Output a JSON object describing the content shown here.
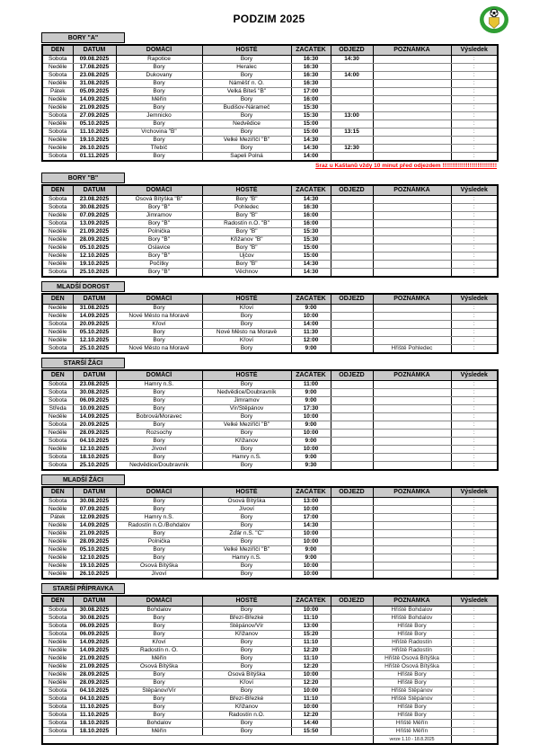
{
  "title": "PODZIM 2025",
  "logo": {
    "name": "club-emblem",
    "ring_color": "#2f9e33",
    "inner_color": "#ffffff",
    "shield_color": "#e9c331",
    "ball_color": "#111111"
  },
  "columns": [
    "DEN",
    "DATUM",
    "DOMÁCÍ",
    "HOSTÉ",
    "ZAČÁTEK",
    "ODJEZD",
    "POZNÁMKA",
    "Výsledek"
  ],
  "fields": [
    "den",
    "datum",
    "domaci",
    "hoste",
    "zacatek",
    "odjezd",
    "poznamka"
  ],
  "result_placeholder": ":",
  "red_note": "Sraz u Kaštanů vždy 10 minut před odjezdem !!!!!!!!!!!!!!!!!!!!!!!!!!!!",
  "red_note_color": "#ff0000",
  "version_note": "verze 1.10 -  18.8.2025",
  "sections": [
    {
      "id": "bory-a",
      "name": "BORY \"A\"",
      "show_red_note_after": true,
      "rows": [
        [
          "Sobota",
          "09.08.2025",
          "Rapotice",
          "Bory",
          "16:30",
          "14:30",
          ""
        ],
        [
          "Neděle",
          "17.08.2025",
          "Bory",
          "Heralec",
          "16:30",
          "",
          ""
        ],
        [
          "Sobota",
          "23.08.2025",
          "Dukovany",
          "Bory",
          "16:30",
          "14:00",
          ""
        ],
        [
          "Neděle",
          "31.08.2025",
          "Bory",
          "Náměšť n. O.",
          "16:30",
          "",
          ""
        ],
        [
          "Pátek",
          "05.09.2025",
          "Bory",
          "Velká Bíteš \"B\"",
          "17:00",
          "",
          ""
        ],
        [
          "Neděle",
          "14.09.2025",
          "Měřín",
          "Bory",
          "16:00",
          "",
          ""
        ],
        [
          "Neděle",
          "21.09.2025",
          "Bory",
          "Budišov-Nárameč",
          "15:30",
          "",
          ""
        ],
        [
          "Sobota",
          "27.09.2025",
          "Jemnicko",
          "Bory",
          "15:30",
          "13:00",
          ""
        ],
        [
          "Neděle",
          "05.10.2025",
          "Bory",
          "Nedvědice",
          "15:00",
          "",
          ""
        ],
        [
          "Sobota",
          "11.10.2025",
          "Vrchovina \"B\"",
          "Bory",
          "15:00",
          "13:15",
          ""
        ],
        [
          "Neděle",
          "19.10.2025",
          "Bory",
          "Velké Meziříčí \"B\"",
          "14:30",
          "",
          ""
        ],
        [
          "Neděle",
          "26.10.2025",
          "Třebíč",
          "Bory",
          "14:30",
          "12:30",
          ""
        ],
        [
          "Sobota",
          "01.11.2025",
          "Bory",
          "Sapeli Polná",
          "14:00",
          "",
          ""
        ]
      ]
    },
    {
      "id": "bory-b",
      "name": "BORY \"B\"",
      "rows": [
        [
          "Sobota",
          "23.08.2025",
          "Osová Bítýška \"B\"",
          "Bory \"B\"",
          "14:30",
          "",
          ""
        ],
        [
          "Sobota",
          "30.08.2025",
          "Bory \"B\"",
          "Pohledec",
          "16:30",
          "",
          ""
        ],
        [
          "Neděle",
          "07.09.2025",
          "Jimramov",
          "Bory \"B\"",
          "16:00",
          "",
          ""
        ],
        [
          "Sobota",
          "13.09.2025",
          "Bory \"B\"",
          "Radostín n.O. \"B\"",
          "16:00",
          "",
          ""
        ],
        [
          "Neděle",
          "21.09.2025",
          "Polnička",
          "Bory \"B\"",
          "15:30",
          "",
          ""
        ],
        [
          "Neděle",
          "28.09.2025",
          "Bory \"B\"",
          "Křižanov \"B\"",
          "15:30",
          "",
          ""
        ],
        [
          "Neděle",
          "05.10.2025",
          "Oslavice",
          "Bory \"B\"",
          "15:00",
          "",
          ""
        ],
        [
          "Neděle",
          "12.10.2025",
          "Bory \"B\"",
          "Ujčov",
          "15:00",
          "",
          ""
        ],
        [
          "Neděle",
          "19.10.2025",
          "Počítky",
          "Bory \"B\"",
          "14:30",
          "",
          ""
        ],
        [
          "Sobota",
          "25.10.2025",
          "Bory \"B\"",
          "Věchnov",
          "14:30",
          "",
          ""
        ]
      ]
    },
    {
      "id": "mladsi-dorost",
      "name": "MLADŠÍ DOROST",
      "rows": [
        [
          "Neděle",
          "31.08.2025",
          "Bory",
          "Křoví",
          "9:00",
          "",
          ""
        ],
        [
          "Neděle",
          "14.09.2025",
          "Nové Město na Moravě",
          "Bory",
          "10:00",
          "",
          ""
        ],
        [
          "Sobota",
          "20.09.2025",
          "Křoví",
          "Bory",
          "14:00",
          "",
          ""
        ],
        [
          "Neděle",
          "05.10.2025",
          "Bory",
          "Nové Město na Moravě",
          "11:30",
          "",
          ""
        ],
        [
          "Neděle",
          "12.10.2025",
          "Bory",
          "Křoví",
          "12:00",
          "",
          ""
        ],
        [
          "Sobota",
          "25.10.2025",
          "Nové Město na Moravě",
          "Bory",
          "9:00",
          "",
          "Hřiště Pohledec"
        ]
      ]
    },
    {
      "id": "starsi-zaci",
      "name": "STARŠÍ ŽÁCI",
      "rows": [
        [
          "Sobota",
          "23.08.2025",
          "Hamry n.S.",
          "Bory",
          "11:00",
          "",
          ""
        ],
        [
          "Sobota",
          "30.08.2025",
          "Bory",
          "Nedvědice/Doubravník",
          "9:00",
          "",
          ""
        ],
        [
          "Sobota",
          "06.09.2025",
          "Bory",
          "Jimramov",
          "9:00",
          "",
          ""
        ],
        [
          "Středa",
          "10.09.2025",
          "Bory",
          "Vír/Štěpánov",
          "17:30",
          "",
          ""
        ],
        [
          "Neděle",
          "14.09.2025",
          "Bobrová/Moravec",
          "Bory",
          "10:00",
          "",
          ""
        ],
        [
          "Sobota",
          "20.09.2025",
          "Bory",
          "Velké Meziříčí \"B\"",
          "9:00",
          "",
          ""
        ],
        [
          "Neděle",
          "28.09.2025",
          "Rozsochy",
          "Bory",
          "10:00",
          "",
          ""
        ],
        [
          "Sobota",
          "04.10.2025",
          "Bory",
          "Křižanov",
          "9:00",
          "",
          ""
        ],
        [
          "Neděle",
          "12.10.2025",
          "Jívoví",
          "Bory",
          "10:00",
          "",
          ""
        ],
        [
          "Sobota",
          "18.10.2025",
          "Bory",
          "Hamry n.S.",
          "9:00",
          "",
          ""
        ],
        [
          "Sobota",
          "25.10.2025",
          "Nedvědice/Doubravník",
          "Bory",
          "9:30",
          "",
          ""
        ]
      ]
    },
    {
      "id": "mladsi-zaci",
      "name": "MLADŠÍ ŽÁCI",
      "rows": [
        [
          "Sobota",
          "30.08.2025",
          "Bory",
          "Osová Bítýška",
          "13:00",
          "",
          ""
        ],
        [
          "Neděle",
          "07.09.2025",
          "Bory",
          "Jívoví",
          "10:00",
          "",
          ""
        ],
        [
          "Pátek",
          "12.09.2025",
          "Hamry n.S.",
          "Bory",
          "17:00",
          "",
          ""
        ],
        [
          "Neděle",
          "14.09.2025",
          "Radostín n.O./Bohdalov",
          "Bory",
          "14:30",
          "",
          ""
        ],
        [
          "Neděle",
          "21.09.2025",
          "Bory",
          "Žďár n.S. \"C\"",
          "10:00",
          "",
          ""
        ],
        [
          "Neděle",
          "28.09.2025",
          "Polnička",
          "Bory",
          "10:00",
          "",
          ""
        ],
        [
          "Neděle",
          "05.10.2025",
          "Bory",
          "Velké Meziříčí \"B\"",
          "9:00",
          "",
          ""
        ],
        [
          "Neděle",
          "12.10.2025",
          "Bory",
          "Hamry n.S.",
          "9:00",
          "",
          ""
        ],
        [
          "Neděle",
          "19.10.2025",
          "Osová Bítýška",
          "Bory",
          "10:00",
          "",
          ""
        ],
        [
          "Neděle",
          "26.10.2025",
          "Jívoví",
          "Bory",
          "10:00",
          "",
          ""
        ]
      ]
    },
    {
      "id": "starsi-pripravka",
      "name": "STARŠÍ PŘÍPRAVKA",
      "has_version_row": true,
      "rows": [
        [
          "Sobota",
          "30.08.2025",
          "Bohdalov",
          "Bory",
          "10:00",
          "",
          "Hřiště Bohdalov"
        ],
        [
          "Sobota",
          "30.08.2025",
          "Bory",
          "Březí-Březké",
          "11:10",
          "",
          "Hřiště Bohdalov"
        ],
        [
          "Sobota",
          "06.09.2025",
          "Bory",
          "Štěpánov/Vír",
          "13:00",
          "",
          "Hřiště Bory"
        ],
        [
          "Sobota",
          "06.09.2025",
          "Bory",
          "Křižanov",
          "15:20",
          "",
          "Hřiště Bory"
        ],
        [
          "Neděle",
          "14.09.2025",
          "Křoví",
          "Bory",
          "11:10",
          "",
          "Hřiště Radostín"
        ],
        [
          "Neděle",
          "14.09.2025",
          "Radostín n. O.",
          "Bory",
          "12:20",
          "",
          "Hřiště Radostín"
        ],
        [
          "Neděle",
          "21.09.2025",
          "Měřín",
          "Bory",
          "11:10",
          "",
          "Hřiště Osová Bítýška"
        ],
        [
          "Neděle",
          "21.09.2025",
          "Osová Bítýška",
          "Bory",
          "12:20",
          "",
          "Hřiště Osová Bítýška"
        ],
        [
          "Neděle",
          "28.09.2025",
          "Bory",
          "Osová Bítýška",
          "10:00",
          "",
          "Hřiště Bory"
        ],
        [
          "Neděle",
          "28.09.2025",
          "Bory",
          "Křoví",
          "12:20",
          "",
          "Hřiště Bory"
        ],
        [
          "Sobota",
          "04.10.2025",
          "Štěpánov/Vír",
          "Bory",
          "10:00",
          "",
          "Hřiště Štěpánov"
        ],
        [
          "Sobota",
          "04.10.2025",
          "Bory",
          "Březí-Březké",
          "11:10",
          "",
          "Hřiště Štěpánov"
        ],
        [
          "Sobota",
          "11.10.2025",
          "Bory",
          "Křižanov",
          "10:00",
          "",
          "Hřiště Bory"
        ],
        [
          "Sobota",
          "11.10.2025",
          "Bory",
          "Radostín n.O.",
          "12:20",
          "",
          "Hřiště Bory"
        ],
        [
          "Sobota",
          "18.10.2025",
          "Bohdalov",
          "Bory",
          "14:40",
          "",
          "Hřiště Měřín"
        ],
        [
          "Sobota",
          "18.10.2025",
          "Měřín",
          "Bory",
          "15:50",
          "",
          "Hřiště Měřín"
        ]
      ]
    }
  ]
}
